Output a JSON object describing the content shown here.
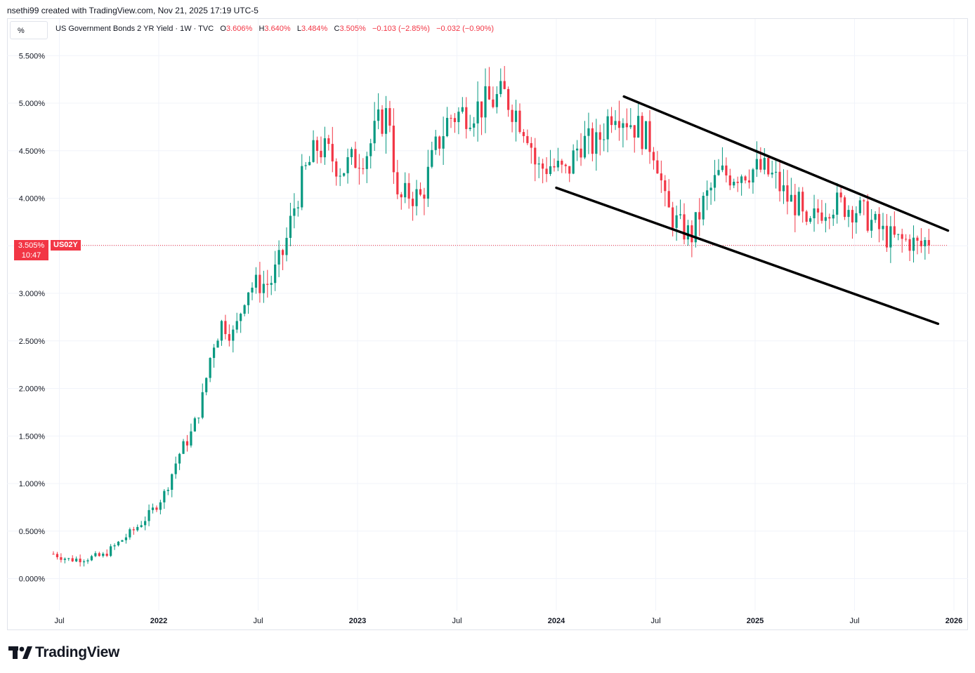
{
  "header": {
    "credit": "nsethi99 created with TradingView.com, Nov 21, 2025 17:19 UTC-5"
  },
  "toolbar": {
    "unit_label": "%"
  },
  "legend": {
    "symbol": "US Government Bonds 2 YR Yield · 1W · TVC",
    "o_label": "O",
    "o_value": "3.606%",
    "h_label": "H",
    "h_value": "3.640%",
    "l_label": "L",
    "l_value": "3.484%",
    "c_label": "C",
    "c_value": "3.505%",
    "change": "−0.103 (−2.85%)",
    "change2": "−0.032 (−0.90%)"
  },
  "price_tag": {
    "value": "3.505%",
    "countdown": "10:47",
    "symbol": "US02Y"
  },
  "colors": {
    "up": "#089981",
    "down": "#f23645",
    "grid": "#f0f3fa",
    "trendline": "#000000"
  },
  "chart_data": {
    "type": "candlestick",
    "title": "US Government Bonds 2 YR Yield · 1W · TVC",
    "ylim": [
      -0.3,
      5.7
    ],
    "y_ticks": [
      "5.500%",
      "5.000%",
      "4.500%",
      "4.000%",
      "3.500%",
      "3.000%",
      "2.500%",
      "2.000%",
      "1.500%",
      "1.000%",
      "0.500%",
      "0.000%"
    ],
    "y_tick_values": [
      5.5,
      5.0,
      4.5,
      4.0,
      3.5,
      3.0,
      2.5,
      2.0,
      1.5,
      1.0,
      0.5,
      0.0
    ],
    "x_ticks": [
      "Jul",
      "2022",
      "Jul",
      "2023",
      "Jul",
      "2024",
      "Jul",
      "2025",
      "Jul",
      "2026"
    ],
    "x_tick_dates": [
      2021.5,
      2022.0,
      2022.5,
      2023.0,
      2023.5,
      2024.0,
      2024.5,
      2025.0,
      2025.5,
      2026.0
    ],
    "x_range": [
      2021.45,
      2026.03
    ],
    "last_close": 3.505,
    "path_anchors": [
      [
        2021.47,
        0.26
      ],
      [
        2021.55,
        0.2
      ],
      [
        2021.62,
        0.21
      ],
      [
        2021.72,
        0.24
      ],
      [
        2021.8,
        0.38
      ],
      [
        2021.88,
        0.52
      ],
      [
        2021.96,
        0.69
      ],
      [
        2022.03,
        0.9
      ],
      [
        2022.1,
        1.3
      ],
      [
        2022.17,
        1.55
      ],
      [
        2022.22,
        1.9
      ],
      [
        2022.27,
        2.45
      ],
      [
        2022.32,
        2.7
      ],
      [
        2022.38,
        2.55
      ],
      [
        2022.44,
        3.05
      ],
      [
        2022.5,
        3.1
      ],
      [
        2022.56,
        3.1
      ],
      [
        2022.63,
        3.45
      ],
      [
        2022.68,
        3.9
      ],
      [
        2022.73,
        4.25
      ],
      [
        2022.8,
        4.55
      ],
      [
        2022.86,
        4.45
      ],
      [
        2022.92,
        4.3
      ],
      [
        2022.98,
        4.4
      ],
      [
        2023.05,
        4.5
      ],
      [
        2023.11,
        4.8
      ],
      [
        2023.16,
        4.9
      ],
      [
        2023.2,
        3.95
      ],
      [
        2023.26,
        4.05
      ],
      [
        2023.32,
        4.0
      ],
      [
        2023.39,
        4.5
      ],
      [
        2023.46,
        4.85
      ],
      [
        2023.53,
        4.9
      ],
      [
        2023.6,
        4.95
      ],
      [
        2023.67,
        5.02
      ],
      [
        2023.74,
        5.08
      ],
      [
        2023.8,
        4.9
      ],
      [
        2023.86,
        4.7
      ],
      [
        2023.9,
        4.3
      ],
      [
        2023.97,
        4.35
      ],
      [
        2024.05,
        4.25
      ],
      [
        2024.12,
        4.6
      ],
      [
        2024.2,
        4.55
      ],
      [
        2024.29,
        4.98
      ],
      [
        2024.35,
        4.85
      ],
      [
        2024.42,
        4.72
      ],
      [
        2024.5,
        4.5
      ],
      [
        2024.55,
        3.9
      ],
      [
        2024.62,
        3.7
      ],
      [
        2024.68,
        3.6
      ],
      [
        2024.74,
        3.95
      ],
      [
        2024.82,
        4.25
      ],
      [
        2024.88,
        4.25
      ],
      [
        2024.96,
        4.3
      ],
      [
        2025.04,
        4.3
      ],
      [
        2025.1,
        4.2
      ],
      [
        2025.16,
        4.0
      ],
      [
        2025.22,
        3.92
      ],
      [
        2025.26,
        3.62
      ],
      [
        2025.31,
        3.85
      ],
      [
        2025.38,
        3.95
      ],
      [
        2025.45,
        3.92
      ],
      [
        2025.52,
        3.88
      ],
      [
        2025.6,
        3.72
      ],
      [
        2025.66,
        3.6
      ],
      [
        2025.72,
        3.55
      ],
      [
        2025.78,
        3.55
      ],
      [
        2025.83,
        3.48
      ],
      [
        2025.87,
        3.58
      ],
      [
        2025.89,
        3.505
      ]
    ],
    "trendlines": [
      {
        "name": "channel-upper",
        "start": [
          2024.34,
          5.07
        ],
        "end": [
          2025.97,
          3.66
        ]
      },
      {
        "name": "channel-lower",
        "start": [
          2024.0,
          4.11
        ],
        "end": [
          2025.92,
          2.68
        ]
      }
    ]
  },
  "branding": {
    "name": "TradingView"
  }
}
